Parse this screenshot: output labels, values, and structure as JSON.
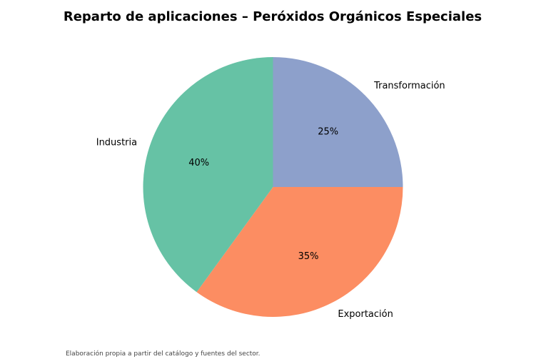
{
  "chart_data": {
    "type": "pie",
    "title": "Reparto de aplicaciones – Peróxidos Orgánicos Especiales",
    "categories": [
      "Transformación",
      "Exportación",
      "Industria"
    ],
    "values": [
      25,
      35,
      40
    ],
    "value_labels": [
      "25%",
      "35%",
      "40%"
    ],
    "colors": [
      "#8da0cb",
      "#fc8d62",
      "#66c2a5"
    ],
    "start": "top",
    "direction": "clockwise",
    "legend": "none",
    "source_note": "Elaboración propia a partir del catálogo y fuentes del sector."
  }
}
